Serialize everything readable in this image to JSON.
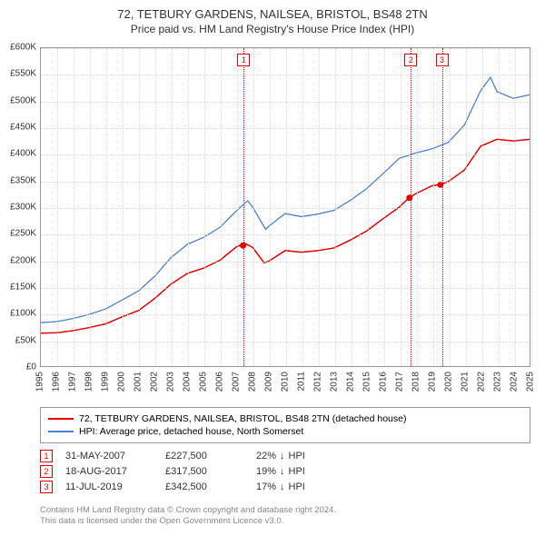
{
  "title": {
    "line1": "72, TETBURY GARDENS, NAILSEA, BRISTOL, BS48 2TN",
    "line2": "Price paid vs. HM Land Registry's House Price Index (HPI)",
    "fontsize1": 13,
    "fontsize2": 12,
    "color": "#333333"
  },
  "chart": {
    "type": "line",
    "background_color": "#ffffff",
    "grid_color": "#d8d8d8",
    "border_color": "#999999",
    "y_axis": {
      "min": 0,
      "max": 600000,
      "tick_step": 50000,
      "prefix": "£",
      "suffix": "K",
      "labels": [
        "£0",
        "£50K",
        "£100K",
        "£150K",
        "£200K",
        "£250K",
        "£300K",
        "£350K",
        "£400K",
        "£450K",
        "£500K",
        "£550K",
        "£600K"
      ],
      "label_fontsize": 10
    },
    "x_axis": {
      "min": 1995,
      "max": 2025,
      "tick_step": 1,
      "labels": [
        "1995",
        "1996",
        "1997",
        "1998",
        "1999",
        "2000",
        "2001",
        "2002",
        "2003",
        "2004",
        "2005",
        "2006",
        "2007",
        "2008",
        "2009",
        "2010",
        "2011",
        "2012",
        "2013",
        "2014",
        "2015",
        "2016",
        "2017",
        "2018",
        "2019",
        "2020",
        "2021",
        "2022",
        "2023",
        "2024",
        "2025"
      ],
      "label_fontsize": 10,
      "label_rotation": -90
    },
    "series": [
      {
        "name": "property",
        "label": "72, TETBURY GARDENS, NAILSEA, BRISTOL, BS48 2TN (detached house)",
        "color": "#e60000",
        "line_width": 1.5,
        "points": [
          [
            1995,
            62000
          ],
          [
            1996,
            63000
          ],
          [
            1997,
            67000
          ],
          [
            1998,
            73000
          ],
          [
            1999,
            80000
          ],
          [
            2000,
            93000
          ],
          [
            2001,
            105000
          ],
          [
            2002,
            128000
          ],
          [
            2003,
            155000
          ],
          [
            2004,
            175000
          ],
          [
            2005,
            185000
          ],
          [
            2006,
            200000
          ],
          [
            2007,
            225000
          ],
          [
            2007.5,
            232000
          ],
          [
            2008,
            224000
          ],
          [
            2008.7,
            195000
          ],
          [
            2009,
            198000
          ],
          [
            2010,
            218000
          ],
          [
            2011,
            215000
          ],
          [
            2012,
            218000
          ],
          [
            2013,
            223000
          ],
          [
            2014,
            238000
          ],
          [
            2015,
            255000
          ],
          [
            2016,
            278000
          ],
          [
            2017,
            300000
          ],
          [
            2017.6,
            317500
          ],
          [
            2018,
            325000
          ],
          [
            2019,
            340000
          ],
          [
            2019.5,
            342500
          ],
          [
            2020,
            348000
          ],
          [
            2021,
            370000
          ],
          [
            2022,
            415000
          ],
          [
            2023,
            428000
          ],
          [
            2024,
            425000
          ],
          [
            2025,
            428000
          ]
        ]
      },
      {
        "name": "hpi",
        "label": "HPI: Average price, detached house, North Somerset",
        "color": "#4a80d6",
        "line_width": 1.3,
        "points": [
          [
            1995,
            82000
          ],
          [
            1996,
            84000
          ],
          [
            1997,
            90000
          ],
          [
            1998,
            98000
          ],
          [
            1999,
            108000
          ],
          [
            2000,
            125000
          ],
          [
            2001,
            142000
          ],
          [
            2002,
            170000
          ],
          [
            2003,
            205000
          ],
          [
            2004,
            230000
          ],
          [
            2005,
            243000
          ],
          [
            2006,
            262000
          ],
          [
            2007,
            293000
          ],
          [
            2007.7,
            312000
          ],
          [
            2008,
            300000
          ],
          [
            2008.8,
            258000
          ],
          [
            2009,
            264000
          ],
          [
            2010,
            288000
          ],
          [
            2011,
            282000
          ],
          [
            2012,
            287000
          ],
          [
            2013,
            294000
          ],
          [
            2014,
            313000
          ],
          [
            2015,
            335000
          ],
          [
            2016,
            363000
          ],
          [
            2017,
            392000
          ],
          [
            2018,
            402000
          ],
          [
            2019,
            410000
          ],
          [
            2020,
            422000
          ],
          [
            2021,
            455000
          ],
          [
            2022,
            520000
          ],
          [
            2022.6,
            545000
          ],
          [
            2023,
            518000
          ],
          [
            2024,
            505000
          ],
          [
            2025,
            512000
          ]
        ]
      }
    ],
    "sale_markers": [
      {
        "n": "1",
        "x": 2007.41,
        "date": "31-MAY-2007",
        "price": "£227,500",
        "diff_pct": "22%",
        "diff_dir": "down",
        "diff_suffix": "HPI",
        "value": 227500
      },
      {
        "n": "2",
        "x": 2017.63,
        "date": "18-AUG-2017",
        "price": "£317,500",
        "diff_pct": "19%",
        "diff_dir": "down",
        "diff_suffix": "HPI",
        "value": 317500
      },
      {
        "n": "3",
        "x": 2019.53,
        "date": "11-JUL-2019",
        "price": "£342,500",
        "diff_pct": "17%",
        "diff_dir": "down",
        "diff_suffix": "HPI",
        "value": 342500
      }
    ],
    "marker_color": "#e60000",
    "marker_box_bg": "#ffffff"
  },
  "legend": {
    "border_color": "#999999",
    "fontsize": 10.5
  },
  "footer": {
    "line1": "Contains HM Land Registry data © Crown copyright and database right 2024.",
    "line2": "This data is licensed under the Open Government Licence v3.0.",
    "color": "#888888",
    "fontsize": 9.5
  }
}
